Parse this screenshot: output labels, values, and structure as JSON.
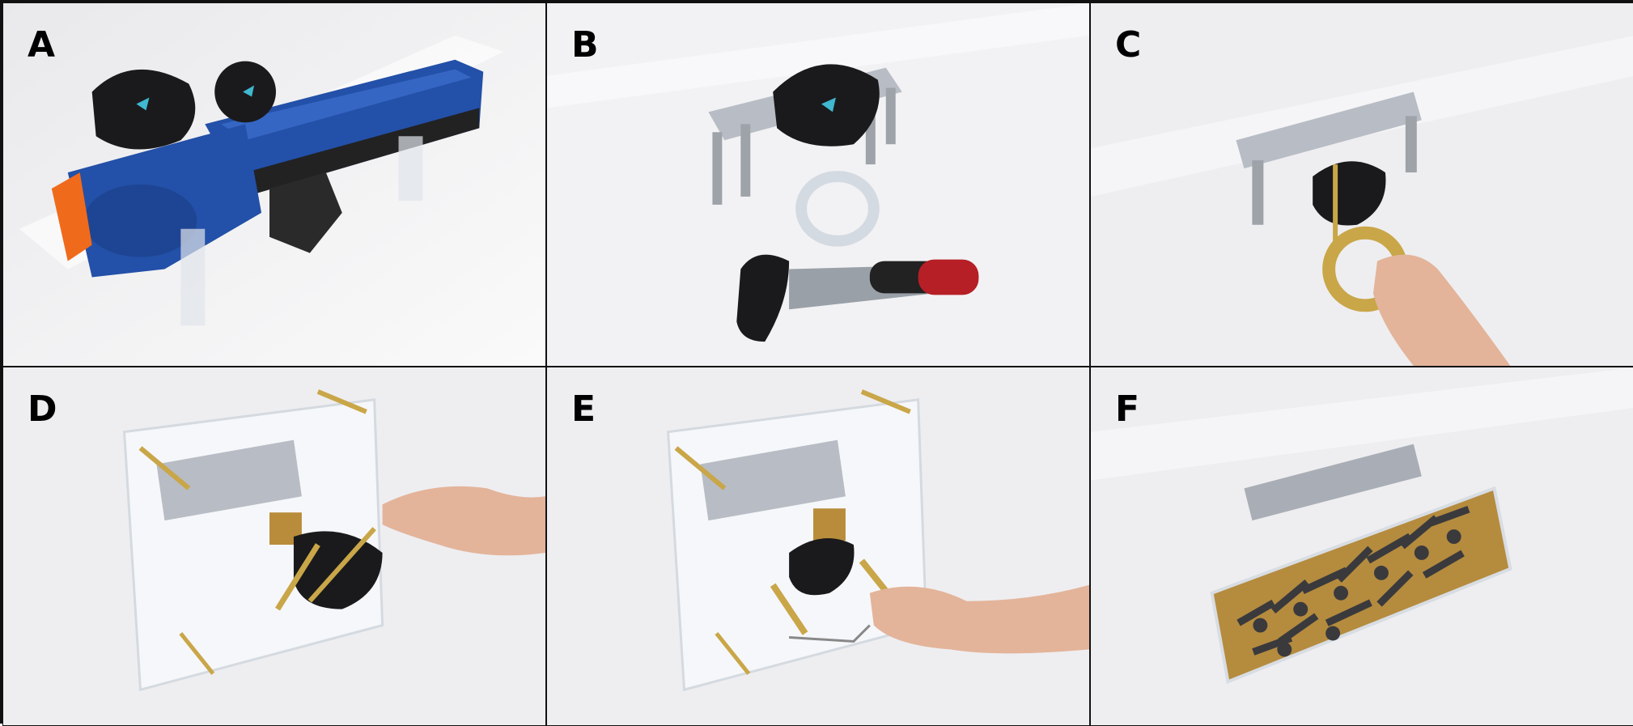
{
  "figure": {
    "panels": [
      {
        "label": "A",
        "subject": "blaster-prop-with-vr-trackers"
      },
      {
        "label": "B",
        "subject": "tracker-mount-and-handle"
      },
      {
        "label": "C",
        "subject": "hand-pulling-ring-handle"
      },
      {
        "label": "D",
        "subject": "acrylic-frame-hand-adjusting"
      },
      {
        "label": "E",
        "subject": "acrylic-frame-hand-crank"
      },
      {
        "label": "F",
        "subject": "box-filled-with-bolts"
      }
    ],
    "colors": {
      "background": "#f2f2f4",
      "border": "#111111",
      "blaster_blue": "#2350a8",
      "blaster_orange": "#f06a1c",
      "tracker_black": "#1a1a1c",
      "aluminum": "#b8bcc4",
      "brass": "#c9a648",
      "skin": "#e3b49a",
      "red_grip": "#b51f25"
    }
  }
}
